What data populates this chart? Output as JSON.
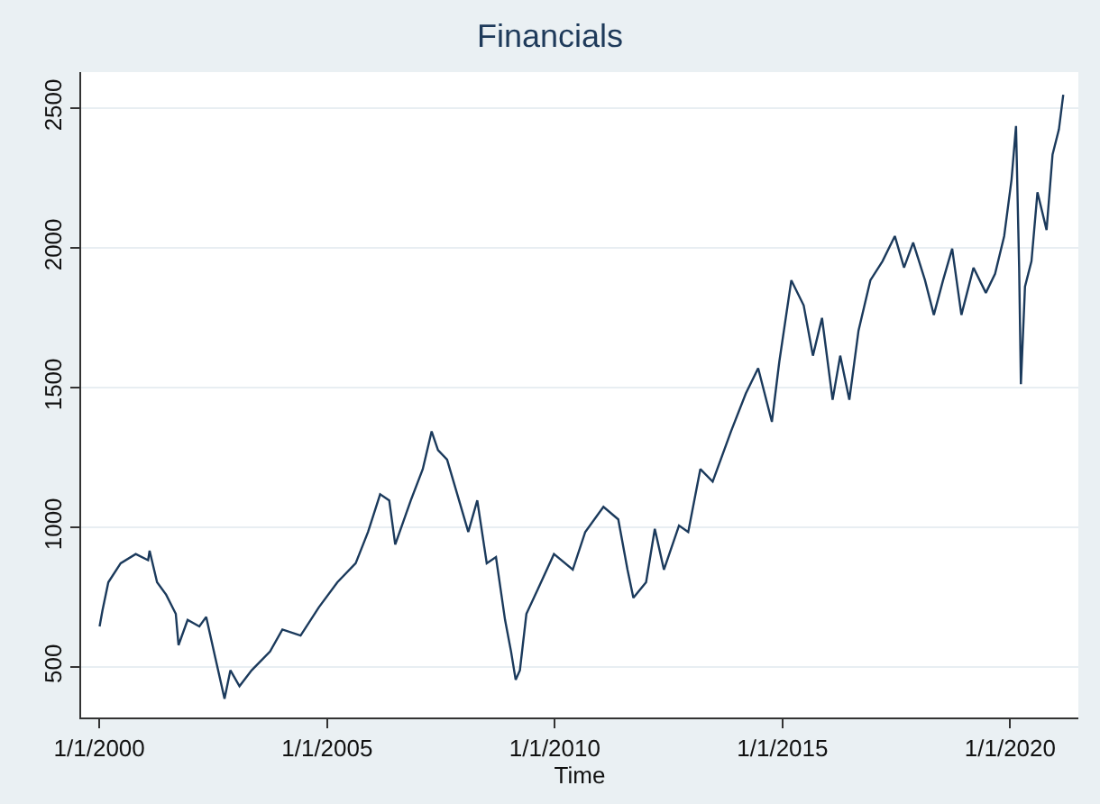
{
  "chart_data": {
    "type": "line",
    "title": "Financials",
    "xlabel": "Time",
    "xlim": [
      "1999-08-08",
      "2021-07-01"
    ],
    "xticks": [
      {
        "value": "2000-01-01",
        "label": "1/1/2000"
      },
      {
        "value": "2005-01-01",
        "label": "1/1/2005"
      },
      {
        "value": "2010-01-01",
        "label": "1/1/2010"
      },
      {
        "value": "2015-01-01",
        "label": "1/1/2015"
      },
      {
        "value": "2020-01-01",
        "label": "1/1/2020"
      }
    ],
    "ylim": [
      320,
      2630
    ],
    "yticks": [
      500,
      1000,
      1500,
      2000,
      2500
    ],
    "grid": "y",
    "marker": "none",
    "line_style": "solid",
    "series": [
      {
        "color": "#1b3a5c",
        "x": [
          "2000-01-03",
          "2000-01-26",
          "2000-03-13",
          "2000-06-20",
          "2000-10-19",
          "2001-01-26",
          "2001-02-07",
          "2001-04-08",
          "2001-06-20",
          "2001-09-05",
          "2001-09-27",
          "2001-12-09",
          "2002-03-13",
          "2002-05-07",
          "2002-07-19",
          "2002-10-01",
          "2002-11-17",
          "2003-01-29",
          "2003-05-07",
          "2003-10-01",
          "2004-01-08",
          "2004-06-02",
          "2004-10-26",
          "2005-03-24",
          "2005-08-18",
          "2005-11-25",
          "2006-03-02",
          "2006-05-14",
          "2006-07-01",
          "2006-11-03",
          "2007-02-07",
          "2007-04-19",
          "2007-06-09",
          "2007-08-21",
          "2007-11-25",
          "2008-02-07",
          "2008-04-19",
          "2008-07-04",
          "2008-09-16",
          "2008-11-28",
          "2009-01-15",
          "2009-02-21",
          "2009-03-27",
          "2009-05-18",
          "2009-08-21",
          "2009-12-25",
          "2010-05-25",
          "2010-09-02",
          "2011-01-26",
          "2011-05-25",
          "2011-08-07",
          "2011-09-23",
          "2012-01-03",
          "2012-03-13",
          "2012-05-25",
          "2012-09-23",
          "2012-12-06",
          "2013-03-13",
          "2013-06-20",
          "2013-11-14",
          "2014-03-13",
          "2014-06-20",
          "2014-10-08",
          "2014-12-06",
          "2015-03-13",
          "2015-06-20",
          "2015-09-02",
          "2015-11-14",
          "2016-02-07",
          "2016-04-08",
          "2016-06-20",
          "2016-09-02",
          "2016-12-06",
          "2017-03-13",
          "2017-06-20",
          "2017-09-02",
          "2017-11-14",
          "2018-02-17",
          "2018-04-29",
          "2018-07-12",
          "2018-09-23",
          "2018-12-06",
          "2019-03-13",
          "2019-06-20",
          "2019-09-02",
          "2019-11-14",
          "2020-01-12",
          "2020-02-17",
          "2020-03-13",
          "2020-03-27",
          "2020-04-29",
          "2020-06-20",
          "2020-08-07",
          "2020-10-19",
          "2020-12-06",
          "2021-01-26",
          "2021-03-02"
        ],
        "values": [
          646,
          703,
          804,
          872,
          905,
          883,
          917,
          804,
          759,
          691,
          579,
          669,
          646,
          680,
          534,
          387,
          489,
          432,
          489,
          556,
          635,
          613,
          714,
          804,
          872,
          984,
          1119,
          1097,
          939,
          1097,
          1209,
          1344,
          1277,
          1243,
          1097,
          984,
          1097,
          872,
          894,
          669,
          556,
          455,
          489,
          691,
          782,
          905,
          849,
          984,
          1074,
          1029,
          849,
          748,
          804,
          995,
          849,
          1007,
          984,
          1209,
          1164,
          1344,
          1480,
          1570,
          1378,
          1592,
          1885,
          1795,
          1615,
          1750,
          1457,
          1615,
          1457,
          1705,
          1885,
          1953,
          2043,
          1930,
          2020,
          1885,
          1761,
          1885,
          1998,
          1761,
          1930,
          1840,
          1908,
          2043,
          2245,
          2437,
          1930,
          1513,
          1862,
          1953,
          2200,
          2065,
          2335,
          2425,
          2549
        ]
      }
    ]
  }
}
